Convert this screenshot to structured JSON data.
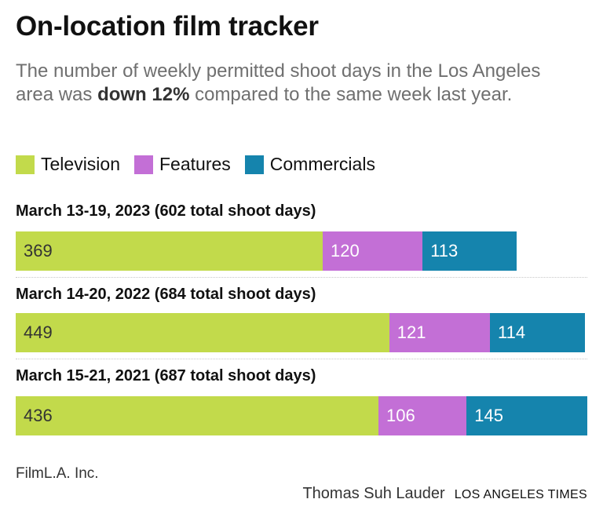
{
  "header": {
    "title": "On-location film tracker",
    "subtitle_part1": "The number of weekly permitted shoot days in the Los Angeles area was ",
    "subtitle_bold": "down 12%",
    "subtitle_part2": " compared to the same week last year."
  },
  "colors": {
    "television": "#c2da4b",
    "features": "#c36fd6",
    "commercials": "#1584ad"
  },
  "chart_data": {
    "type": "bar",
    "orientation": "horizontal",
    "stacked": true,
    "legend_placement": "top-left",
    "series_names": [
      "Television",
      "Features",
      "Commercials"
    ],
    "rows": [
      {
        "label": "March 13-19, 2023 (602 total shoot days)",
        "total": 602,
        "values": [
          369,
          120,
          113
        ]
      },
      {
        "label": "March 14-20, 2022 (684 total shoot days)",
        "total": 684,
        "values": [
          449,
          121,
          114
        ]
      },
      {
        "label": "March 15-21, 2021 (687 total shoot days)",
        "total": 687,
        "values": [
          436,
          106,
          145
        ]
      }
    ]
  },
  "footer": {
    "source": "FilmL.A. Inc.",
    "author": "Thomas Suh Lauder",
    "organization": "LOS ANGELES TIMES"
  }
}
